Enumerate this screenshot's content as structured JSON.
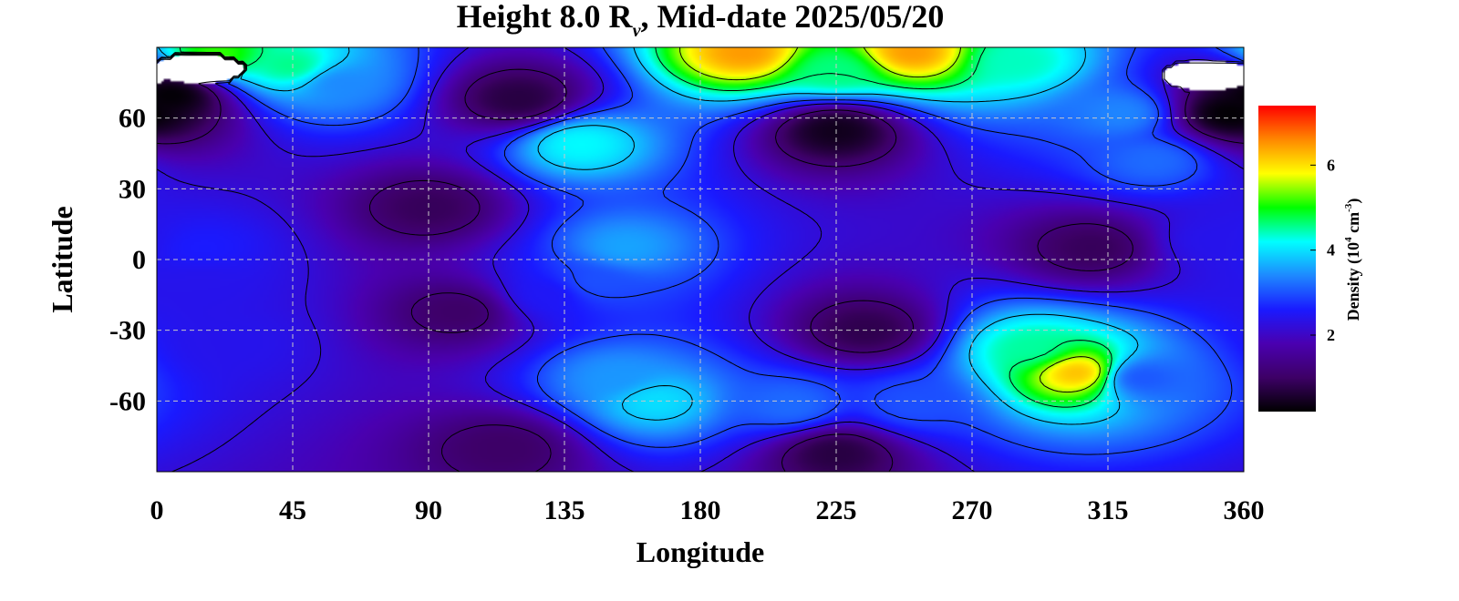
{
  "chart_data": {
    "type": "heatmap",
    "title": {
      "prefix": "Height 8.0 R",
      "subscript": "v",
      "suffix": ", Mid-date 2025/05/20"
    },
    "xlabel": "Longitude",
    "ylabel": "Latitude",
    "xlim": [
      0,
      360
    ],
    "ylim": [
      -90,
      90
    ],
    "x_ticks": [
      "0",
      "45",
      "90",
      "135",
      "180",
      "225",
      "270",
      "315",
      "360"
    ],
    "x_tick_values": [
      0,
      45,
      90,
      135,
      180,
      225,
      270,
      315,
      360
    ],
    "y_ticks": [
      "-60",
      "-30",
      "0",
      "30",
      "60"
    ],
    "y_tick_values": [
      -60,
      -30,
      0,
      30,
      60
    ],
    "grid": true,
    "colorbar": {
      "label_prefix": "Density (10",
      "label_exp1": "4",
      "label_mid": " cm",
      "label_exp2": "-3",
      "label_suffix": ")",
      "ticks": [
        "2",
        "4",
        "6"
      ],
      "tick_values": [
        2,
        4,
        6
      ],
      "range": [
        0.2,
        7.4
      ],
      "placement": "right",
      "colors": [
        "#000000",
        "#3d0066",
        "#4a00b0",
        "#1a1aff",
        "#1e88ff",
        "#00ffff",
        "#00ff00",
        "#ffff00",
        "#ff8800",
        "#ff0000"
      ]
    },
    "regions": [
      {
        "lon": 195,
        "lat": 88,
        "level": 6.5
      },
      {
        "lon": 250,
        "lat": 88,
        "level": 6.5
      },
      {
        "lon": 225,
        "lat": 80,
        "level": 4.6
      },
      {
        "lon": 285,
        "lat": 84,
        "level": 4.4
      },
      {
        "lon": 45,
        "lat": 82,
        "level": 4.6
      },
      {
        "lon": 20,
        "lat": 87,
        "level": 5.2
      },
      {
        "lon": 60,
        "lat": 75,
        "level": 3.4
      },
      {
        "lon": 320,
        "lat": 62,
        "level": 3.4
      },
      {
        "lon": 330,
        "lat": 42,
        "level": 3.2
      },
      {
        "lon": 140,
        "lat": 49,
        "level": 4.2
      },
      {
        "lon": 155,
        "lat": 5,
        "level": 3.6
      },
      {
        "lon": 145,
        "lat": -10,
        "level": 3.0
      },
      {
        "lon": 130,
        "lat": -15,
        "level": 2.5
      },
      {
        "lon": 305,
        "lat": -48,
        "level": 6.3
      },
      {
        "lon": 290,
        "lat": -38,
        "level": 4.5
      },
      {
        "lon": 325,
        "lat": -50,
        "level": 3.0
      },
      {
        "lon": 165,
        "lat": -60,
        "level": 4.0
      },
      {
        "lon": 152,
        "lat": -50,
        "level": 3.5
      },
      {
        "lon": 210,
        "lat": -62,
        "level": 3.2
      },
      {
        "lon": 250,
        "lat": -61,
        "level": 3.0
      },
      {
        "lon": 15,
        "lat": 5,
        "level": 2.6
      },
      {
        "lon": 350,
        "lat": 8,
        "level": 2.4
      },
      {
        "lon": 15,
        "lat": -10,
        "level": 2.4
      },
      {
        "lon": 25,
        "lat": -35,
        "level": 2.4
      },
      {
        "lon": 225,
        "lat": 55,
        "level": 0.4
      },
      {
        "lon": 90,
        "lat": 22,
        "level": 0.9
      },
      {
        "lon": 100,
        "lat": -22,
        "level": 1.0
      },
      {
        "lon": 120,
        "lat": 68,
        "level": 0.7
      },
      {
        "lon": 235,
        "lat": -30,
        "level": 0.8
      },
      {
        "lon": 310,
        "lat": 5,
        "level": 0.9
      },
      {
        "lon": 225,
        "lat": -82,
        "level": 0.7
      },
      {
        "lon": 115,
        "lat": -80,
        "level": 1.0
      },
      {
        "lon": 5,
        "lat": 70,
        "level": 0.2
      },
      {
        "lon": 355,
        "lat": 62,
        "level": 0.2
      }
    ],
    "blank_regions": [
      {
        "lon": 14,
        "lat": 81
      },
      {
        "lon": 348,
        "lat": 78
      }
    ],
    "contour_levels": [
      1.2,
      2.2,
      2.9,
      3.8,
      4.6,
      5.5
    ]
  }
}
